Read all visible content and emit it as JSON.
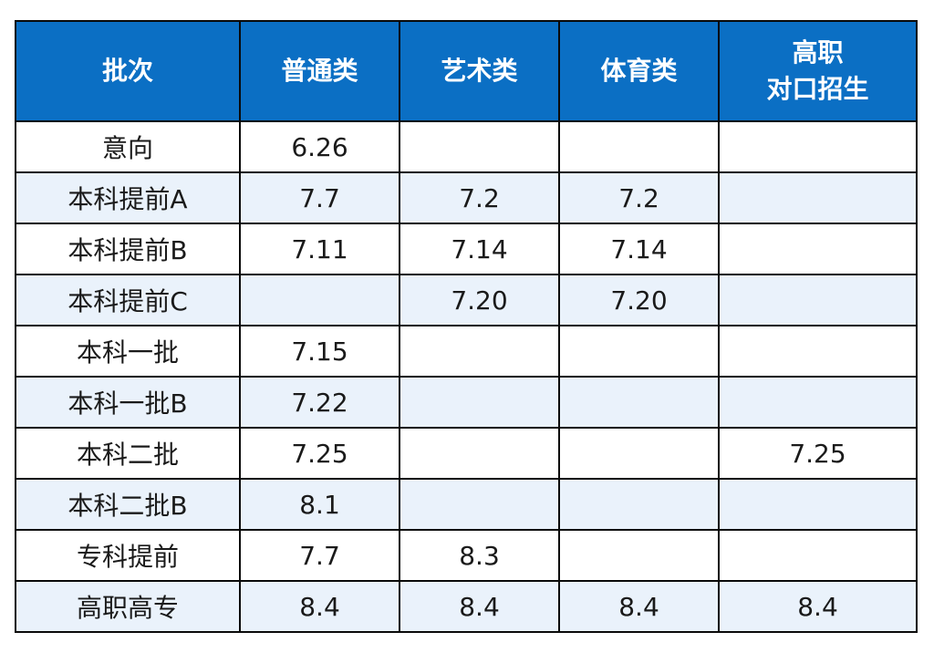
{
  "table": {
    "headers": [
      "批次",
      "普通类",
      "艺术类",
      "体育类"
    ],
    "header_last_line1": "高职",
    "header_last_line2": "对口招生",
    "rows": [
      [
        "意向",
        "6.26",
        "",
        "",
        ""
      ],
      [
        "本科提前A",
        "7.7",
        "7.2",
        "7.2",
        ""
      ],
      [
        "本科提前B",
        "7.11",
        "7.14",
        "7.14",
        ""
      ],
      [
        "本科提前C",
        "",
        "7.20",
        "7.20",
        ""
      ],
      [
        "本科一批",
        "7.15",
        "",
        "",
        ""
      ],
      [
        "本科一批B",
        "7.22",
        "",
        "",
        ""
      ],
      [
        "本科二批",
        "7.25",
        "",
        "",
        "7.25"
      ],
      [
        "本科二批B",
        "8.1",
        "",
        "",
        ""
      ],
      [
        "专科提前",
        "7.7",
        "8.3",
        "",
        ""
      ],
      [
        "高职高专",
        "8.4",
        "8.4",
        "8.4",
        "8.4"
      ]
    ]
  },
  "colors": {
    "header_bg": "#0b6fc4",
    "alt_row_bg": "#eaf2fb"
  }
}
